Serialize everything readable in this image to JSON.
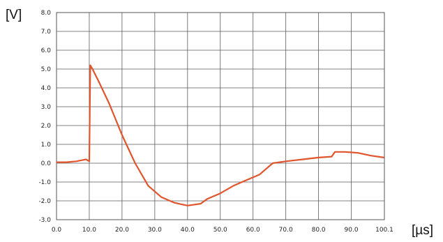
{
  "chart_data": {
    "type": "line",
    "ylabel": "[V]",
    "xlabel": "[µs]",
    "xlim": [
      0,
      100.1
    ],
    "ylim": [
      -3.0,
      8.0
    ],
    "x_ticks": [
      "0.0",
      "10.0",
      "20.0",
      "30.0",
      "40.0",
      "50.0",
      "60.0",
      "70.0",
      "80.0",
      "90.0",
      "100.1"
    ],
    "y_ticks": [
      "8.0",
      "7.0",
      "6.0",
      "5.0",
      "4.0",
      "3.0",
      "2.0",
      "1.0",
      "0.0",
      "-1.0",
      "-2.0",
      "-3.0"
    ],
    "grid": true,
    "line_color": "#e0552c",
    "series": [
      {
        "x": [
          0,
          3,
          6,
          9,
          10,
          10.3,
          11,
          13,
          16,
          20,
          24,
          28,
          32,
          36,
          40,
          44,
          46,
          50,
          54,
          58,
          62,
          66,
          70,
          75,
          80,
          84,
          85,
          88,
          92,
          96,
          100
        ],
        "y": [
          0.05,
          0.05,
          0.1,
          0.2,
          0.1,
          5.2,
          5.0,
          4.3,
          3.2,
          1.5,
          0.0,
          -1.2,
          -1.8,
          -2.1,
          -2.25,
          -2.15,
          -1.9,
          -1.6,
          -1.2,
          -0.9,
          -0.6,
          0.0,
          0.1,
          0.2,
          0.3,
          0.35,
          0.6,
          0.6,
          0.55,
          0.4,
          0.3
        ]
      }
    ]
  }
}
